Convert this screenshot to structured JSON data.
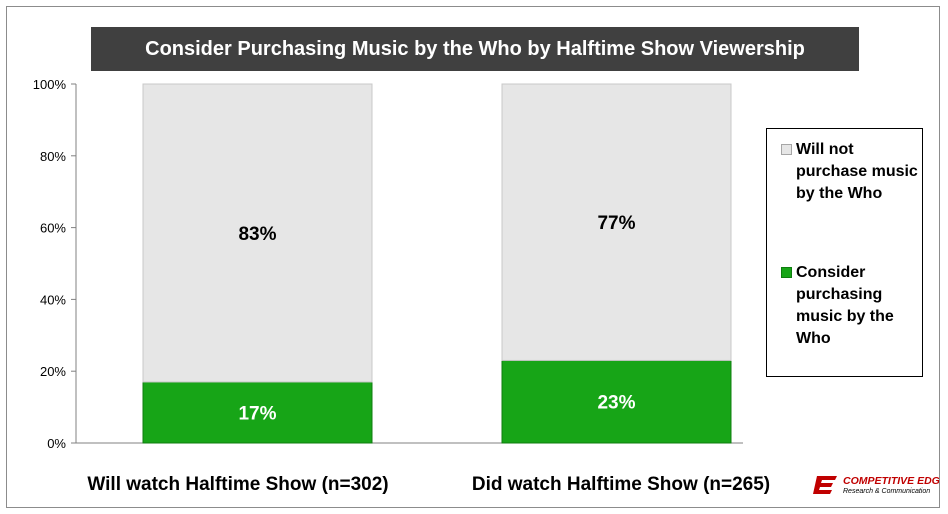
{
  "chart_data": {
    "type": "bar",
    "stacked": true,
    "percent": true,
    "title": "Consider Purchasing Music by the Who by Halftime Show Viewership",
    "categories": [
      "Will watch Halftime Show (n=302)",
      "Did watch Halftime Show (n=265)"
    ],
    "series": [
      {
        "name": "Consider purchasing music by the Who",
        "values": [
          17,
          23
        ],
        "labels": [
          "17%",
          "23%"
        ],
        "color": "#17a517",
        "label_color": "#ffffff"
      },
      {
        "name": "Will not purchase music by the Who",
        "values": [
          83,
          77
        ],
        "labels": [
          "83%",
          "77%"
        ],
        "color": "#e6e6e6",
        "label_color": "#000000"
      }
    ],
    "ylim": [
      0,
      100
    ],
    "yticks": [
      "0%",
      "20%",
      "40%",
      "60%",
      "80%",
      "100%"
    ],
    "grid": false,
    "legend_position": "right",
    "legend": [
      {
        "label": "Will not purchase music by the Who",
        "color": "#e6e6e6"
      },
      {
        "label": "Consider purchasing music by the Who",
        "color": "#17a517"
      }
    ]
  },
  "branding": {
    "logo_title": "COMPETITIVE EDGE",
    "logo_subtitle": "Research & Communication",
    "logo_color": "#c00000"
  }
}
